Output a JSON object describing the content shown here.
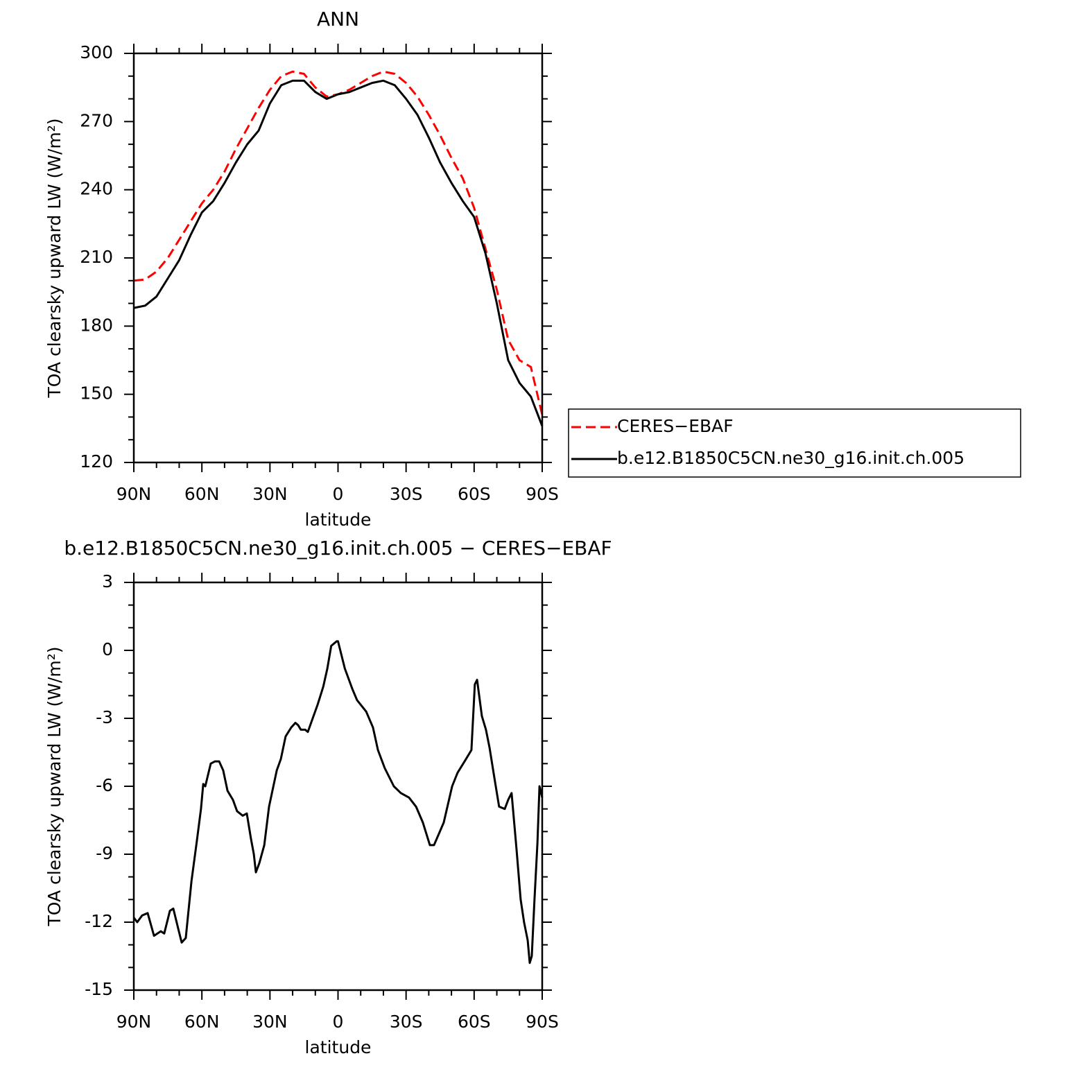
{
  "chart_data": [
    {
      "type": "line",
      "title": "ANN",
      "xlabel": "latitude",
      "ylabel": "TOA clearsky upward LW (W/m²)",
      "x": [
        90,
        85,
        80,
        75,
        70,
        65,
        60,
        55,
        50,
        45,
        40,
        35,
        30,
        25,
        20,
        15,
        10,
        5,
        0,
        -5,
        -10,
        -15,
        -20,
        -25,
        -30,
        -35,
        -40,
        -45,
        -50,
        -55,
        -60,
        -65,
        -70,
        -75,
        -80,
        -85,
        -90
      ],
      "series": [
        {
          "name": "CERES−EBAF",
          "color": "#ff0000",
          "dashed": true,
          "values": [
            200,
            200.5,
            204,
            210,
            218,
            226,
            234,
            240,
            248,
            258,
            267,
            276,
            284,
            290,
            292,
            291,
            285,
            281,
            282,
            284,
            287,
            290,
            292,
            291,
            287,
            281,
            273,
            264,
            254,
            245,
            232,
            214,
            196,
            174,
            165,
            162,
            141
          ]
        },
        {
          "name": "b.e12.B1850C5CN.ne30_g16.init.ch.005",
          "color": "#000000",
          "dashed": false,
          "values": [
            188,
            189,
            193,
            201,
            209,
            220,
            230,
            235,
            243,
            252,
            260,
            266,
            278,
            286,
            288,
            288,
            283,
            280,
            282,
            283,
            285,
            287,
            288,
            286,
            280,
            273,
            263,
            252,
            243,
            235,
            228,
            212,
            190,
            165,
            155,
            149,
            136
          ]
        }
      ],
      "xlim": [
        90,
        -90
      ],
      "xticks": [
        {
          "value": 90,
          "label": "90N"
        },
        {
          "value": 60,
          "label": "60N"
        },
        {
          "value": 30,
          "label": "30N"
        },
        0,
        {
          "value": -30,
          "label": "30S"
        },
        {
          "value": -60,
          "label": "60S"
        },
        {
          "value": -90,
          "label": "90S"
        }
      ],
      "ylim": [
        120,
        300
      ],
      "yticks": [
        120,
        150,
        180,
        210,
        240,
        270,
        300
      ],
      "legend": "right"
    },
    {
      "type": "line",
      "title": "b.e12.B1850C5CN.ne30_g16.init.ch.005 − CERES−EBAF",
      "xlabel": "latitude",
      "ylabel": "TOA clearsky upward LW (W/m²)",
      "x": [
        90,
        88.5,
        86.3,
        83.9,
        81.1,
        78.1,
        76.6,
        74.1,
        72.6,
        70.4,
        68.9,
        67.1,
        64.6,
        62.2,
        60.4,
        59.4,
        58.5,
        56.1,
        54.2,
        52.4,
        50.6,
        48.7,
        46.3,
        44.5,
        42,
        40.2,
        38.4,
        37.1,
        36.2,
        34.7,
        32.5,
        30.4,
        27,
        25.2,
        23.1,
        20.6,
        18.8,
        17.6,
        16.4,
        14.5,
        13.3,
        10.8,
        9,
        6.5,
        4.7,
        3,
        0.6,
        0,
        -3,
        -6.3,
        -8.4,
        -12.4,
        -15.4,
        -17.6,
        -20.6,
        -24.6,
        -27.7,
        -31.3,
        -34.4,
        -37.4,
        -40.5,
        -42.3,
        -46.6,
        -50.3,
        -52.7,
        -55.8,
        -58.8,
        -60.3,
        -61.3,
        -63.4,
        -65.2,
        -66.8,
        -69.2,
        -71,
        -73.5,
        -75,
        -76.5,
        -78.7,
        -80.5,
        -82,
        -83.6,
        -84.5,
        -85.4,
        -86.6,
        -87.9,
        -88.8,
        -90
      ],
      "series": [
        {
          "color": "#000000",
          "dashed": false,
          "values": [
            -11.8,
            -12,
            -11.7,
            -11.6,
            -12.6,
            -12.4,
            -12.5,
            -11.5,
            -11.4,
            -12.3,
            -12.9,
            -12.7,
            -10.2,
            -8.4,
            -7,
            -5.9,
            -6,
            -5,
            -4.9,
            -4.9,
            -5.3,
            -6.2,
            -6.6,
            -7.1,
            -7.3,
            -7.2,
            -8.3,
            -9,
            -9.8,
            -9.4,
            -8.6,
            -6.9,
            -5.3,
            -4.8,
            -3.8,
            -3.4,
            -3.2,
            -3.3,
            -3.5,
            -3.5,
            -3.6,
            -2.9,
            -2.4,
            -1.6,
            -0.8,
            0.2,
            0.4,
            0.4,
            -0.8,
            -1.7,
            -2.2,
            -2.7,
            -3.4,
            -4.4,
            -5.2,
            -6,
            -6.3,
            -6.5,
            -6.9,
            -7.6,
            -8.6,
            -8.6,
            -7.6,
            -6,
            -5.4,
            -4.9,
            -4.4,
            -1.5,
            -1.3,
            -2.9,
            -3.5,
            -4.3,
            -5.8,
            -6.9,
            -7,
            -6.6,
            -6.3,
            -8.8,
            -11,
            -12,
            -12.8,
            -13.8,
            -13.5,
            -11,
            -8.5,
            -6,
            -6.5
          ]
        }
      ],
      "xlim": [
        90,
        -90
      ],
      "xticks": [
        {
          "value": 90,
          "label": "90N"
        },
        {
          "value": 60,
          "label": "60N"
        },
        {
          "value": 30,
          "label": "30N"
        },
        0,
        {
          "value": -30,
          "label": "30S"
        },
        {
          "value": -60,
          "label": "60S"
        },
        {
          "value": -90,
          "label": "90S"
        }
      ],
      "ylim": [
        -15,
        3
      ],
      "yticks": [
        -15,
        -12,
        -9,
        -6,
        -3,
        0,
        3
      ]
    }
  ]
}
